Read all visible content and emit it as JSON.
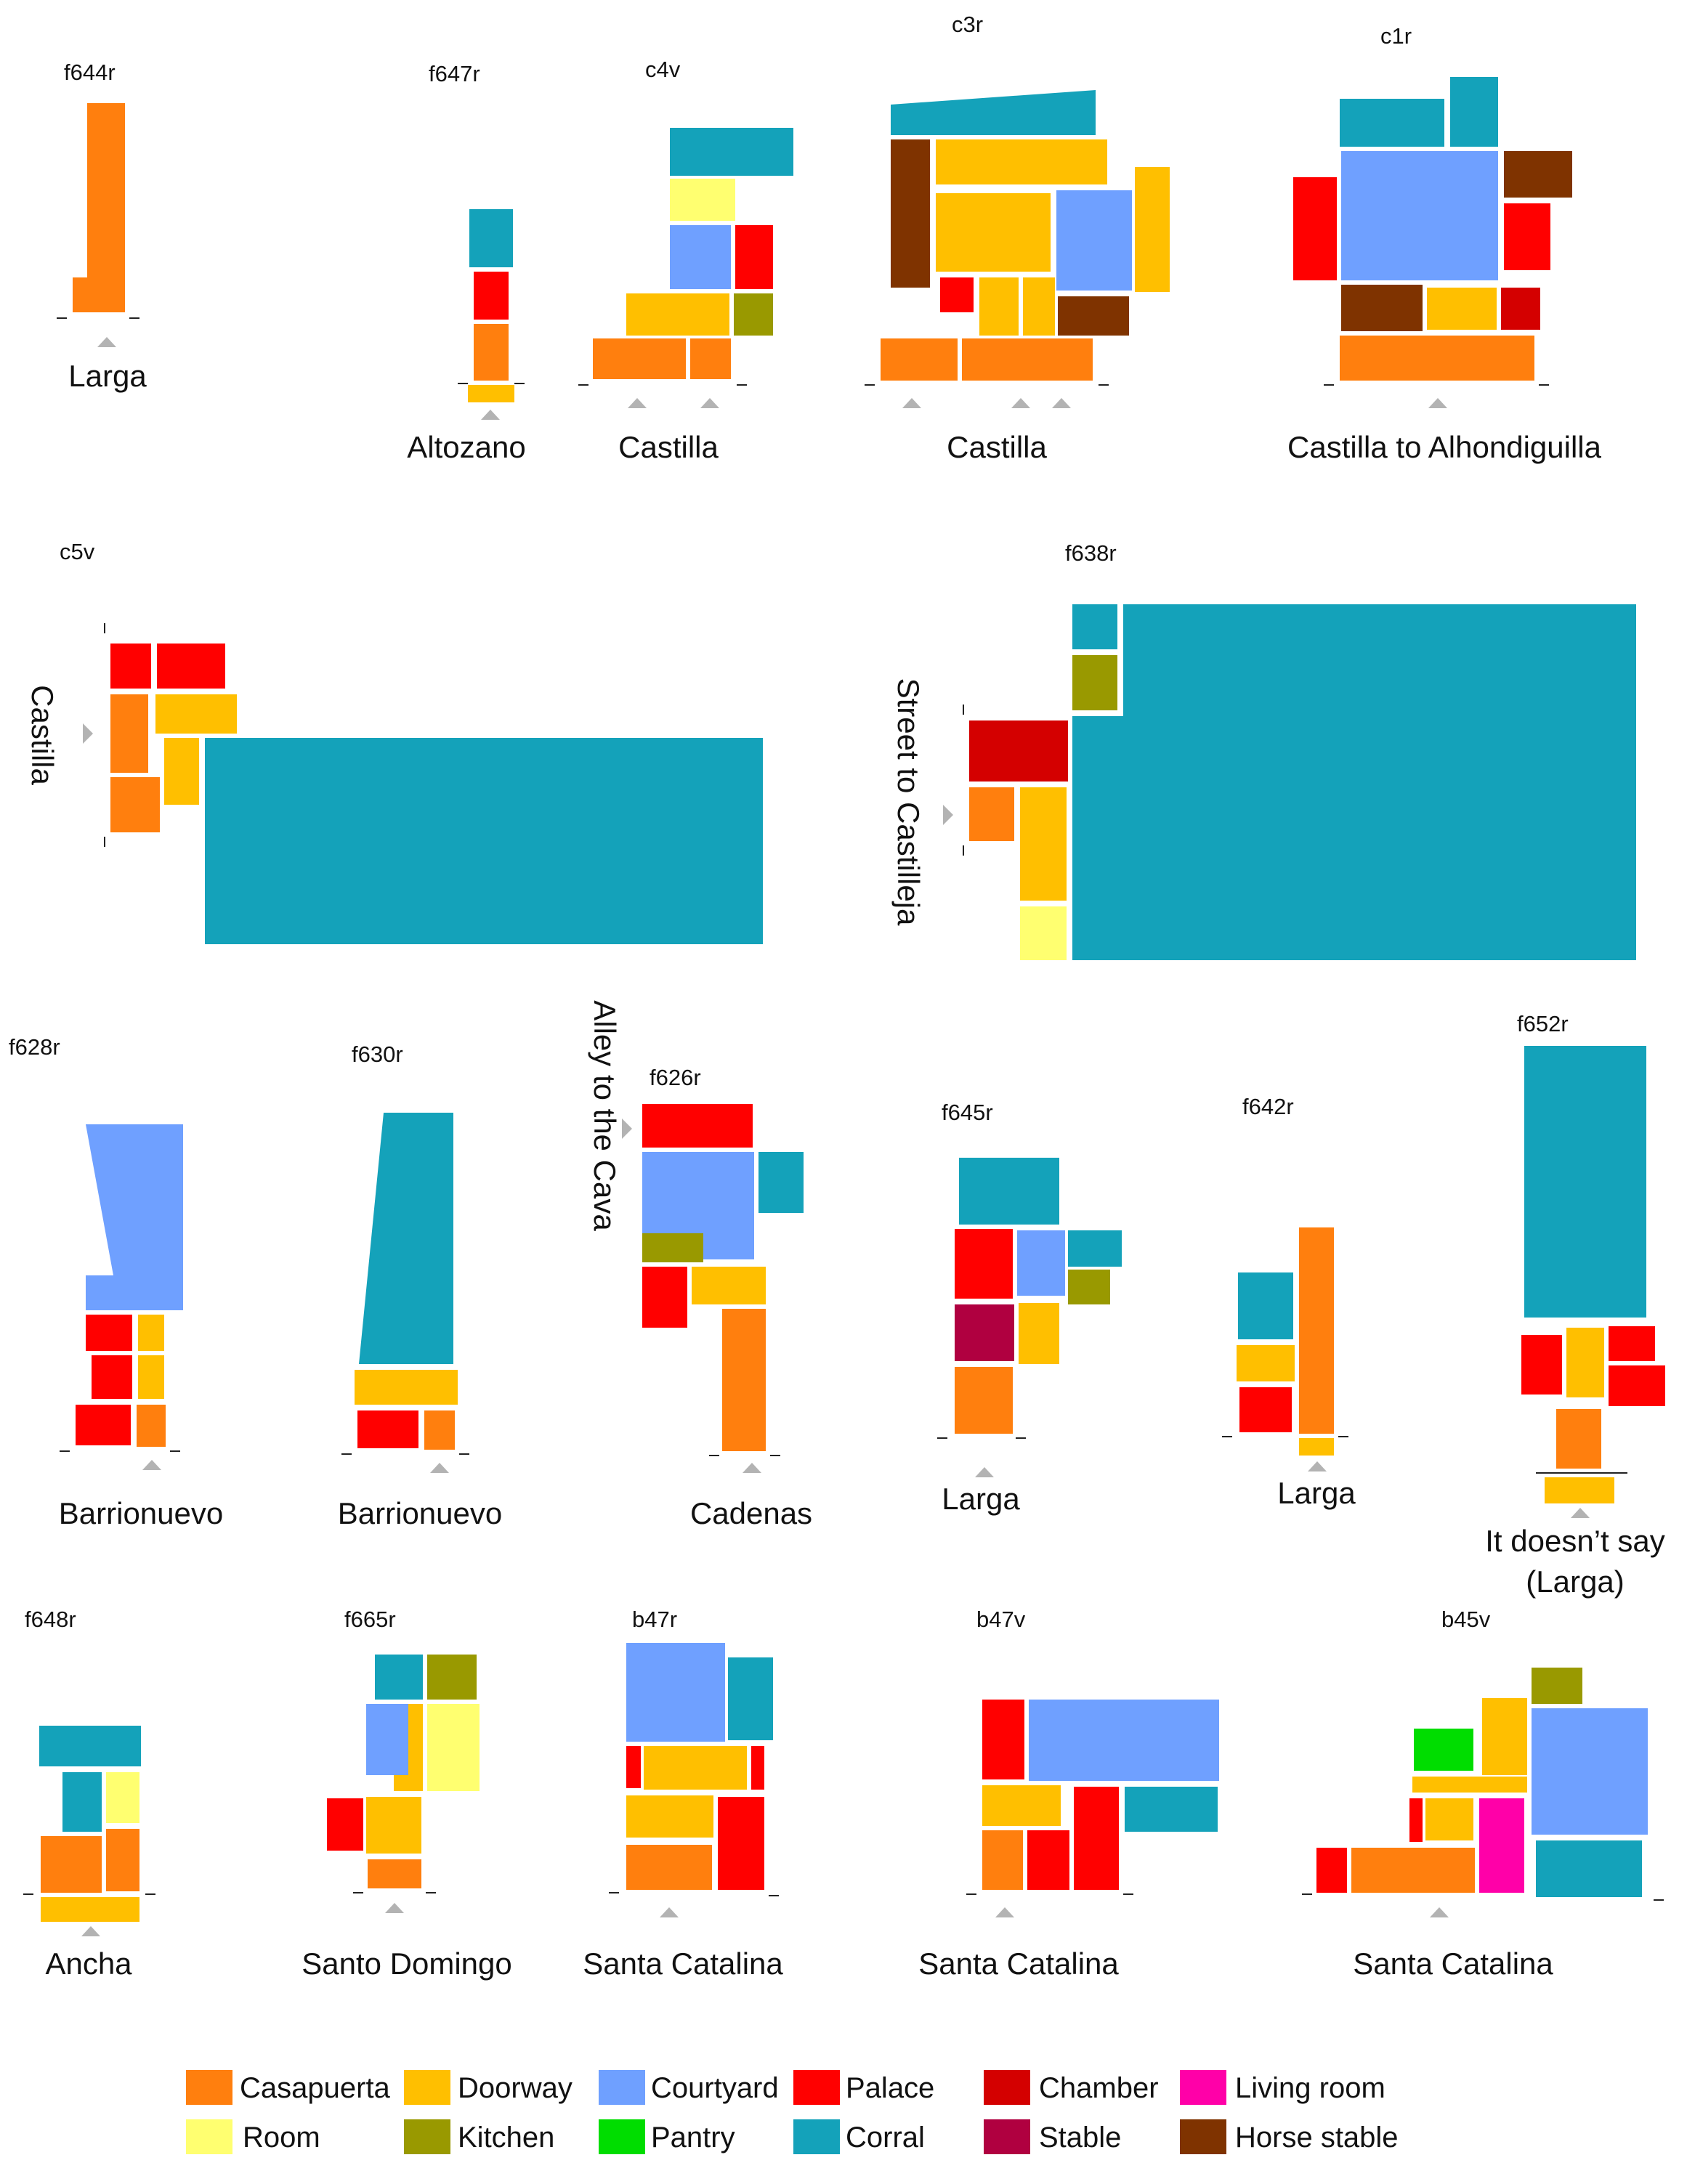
{
  "colors": {
    "casapuerta": "#FF7F0E",
    "doorway": "#FFBF00",
    "courtyard": "#6FA0FF",
    "palace": "#FF0000",
    "chamber": "#D40000",
    "living_room": "#FF00A8",
    "room": "#FFFF70",
    "kitchen": "#999900",
    "pantry": "#00DD00",
    "corral": "#14A2BA",
    "stable": "#B00040",
    "horse_stable": "#7F3300",
    "arrow": "#B3B3B3"
  },
  "plans": [
    {
      "id": "f644r",
      "code": "f644r",
      "street": "Larga"
    },
    {
      "id": "f647r",
      "code": "f647r",
      "street": "Altozano"
    },
    {
      "id": "c4v",
      "code": "c4v",
      "street": "Castilla"
    },
    {
      "id": "c3r",
      "code": "c3r",
      "street": "Castilla"
    },
    {
      "id": "c1r",
      "code": "c1r",
      "street": "Castilla to Alhondiguilla"
    },
    {
      "id": "c5v",
      "code": "c5v",
      "street": "Castilla"
    },
    {
      "id": "f638r",
      "code": "f638r",
      "street": "Street to Castilleja"
    },
    {
      "id": "f628r",
      "code": "f628r",
      "street": "Barrionuevo"
    },
    {
      "id": "f630r",
      "code": "f630r",
      "street": "Barrionuevo"
    },
    {
      "id": "f626r",
      "code": "f626r",
      "street": "Cadenas",
      "street2": "Alley to the Cava"
    },
    {
      "id": "f645r",
      "code": "f645r",
      "street": "Larga"
    },
    {
      "id": "f642r",
      "code": "f642r",
      "street": "Larga"
    },
    {
      "id": "f652r",
      "code": "f652r",
      "street": "It doesn’t say",
      "street_line2": "(Larga)"
    },
    {
      "id": "f648r",
      "code": "f648r",
      "street": "Ancha"
    },
    {
      "id": "f665r",
      "code": "f665r",
      "street": "Santo Domingo"
    },
    {
      "id": "b47r",
      "code": "b47r",
      "street": "Santa Catalina"
    },
    {
      "id": "b47v",
      "code": "b47v",
      "street": "Santa Catalina"
    },
    {
      "id": "b45v",
      "code": "b45v",
      "street": "Santa Catalina"
    }
  ],
  "legend": [
    {
      "key": "casapuerta",
      "label": "Casapuerta",
      "color": "#FF7F0E"
    },
    {
      "key": "doorway",
      "label": "Doorway",
      "color": "#FFBF00"
    },
    {
      "key": "courtyard",
      "label": "Courtyard",
      "color": "#6FA0FF"
    },
    {
      "key": "palace",
      "label": "Palace",
      "color": "#FF0000"
    },
    {
      "key": "chamber",
      "label": "Chamber",
      "color": "#D40000"
    },
    {
      "key": "living_room",
      "label": "Living room",
      "color": "#FF00A8"
    },
    {
      "key": "room",
      "label": "Room",
      "color": "#FFFF70"
    },
    {
      "key": "kitchen",
      "label": "Kitchen",
      "color": "#999900"
    },
    {
      "key": "pantry",
      "label": "Pantry",
      "color": "#00DD00"
    },
    {
      "key": "corral",
      "label": "Corral",
      "color": "#14A2BA"
    },
    {
      "key": "stable",
      "label": "Stable",
      "color": "#B00040"
    },
    {
      "key": "horse_stable",
      "label": "Horse stable",
      "color": "#7F3300"
    }
  ]
}
